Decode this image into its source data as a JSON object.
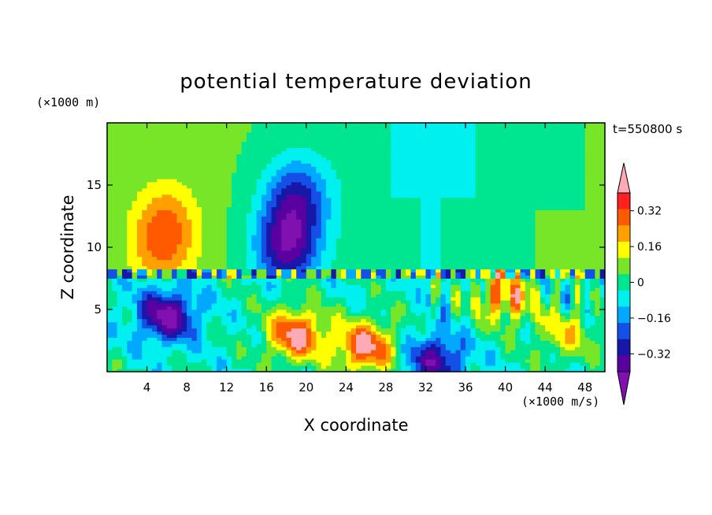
{
  "chart_data": {
    "type": "heatmap",
    "title": "potential temperature deviation",
    "xlabel": "X coordinate",
    "ylabel": "Z coordinate",
    "x_unit": "(×1000 m/s)",
    "y_unit": "(×1000 m)",
    "time_label": "t=550800 s",
    "xlim": [
      0,
      50
    ],
    "ylim": [
      0,
      20
    ],
    "xticks": [
      4,
      8,
      12,
      16,
      20,
      24,
      28,
      32,
      36,
      40,
      44,
      48
    ],
    "yticks": [
      5,
      10,
      15
    ],
    "colorbar": {
      "levels": [
        -0.4,
        -0.32,
        -0.24,
        -0.16,
        -0.08,
        0,
        0.08,
        0.16,
        0.24,
        0.32,
        0.4
      ],
      "tick_labels": [
        "0.32",
        "0.16",
        "0",
        "−0.16",
        "−0.32"
      ],
      "tick_values": [
        0.32,
        0.16,
        0,
        -0.16,
        -0.32
      ],
      "colors": [
        "#8010b0",
        "#5a00a0",
        "#1818a8",
        "#1450e6",
        "#00a8ff",
        "#00f0f0",
        "#00e690",
        "#78e628",
        "#ffff00",
        "#ffa000",
        "#ff5a00",
        "#ff2020",
        "#ffaab4"
      ],
      "extend": "both"
    },
    "features": [
      {
        "x": 6,
        "z": 12.5,
        "value": 0.24
      },
      {
        "x": 5.5,
        "z": 10,
        "value": 0.3
      },
      {
        "x": 19,
        "z": 14,
        "value": -0.24
      },
      {
        "x": 18,
        "z": 10,
        "value": -0.34
      },
      {
        "x": 6,
        "z": 4.5,
        "value": -0.42
      },
      {
        "x": 19,
        "z": 3,
        "value": 0.42
      },
      {
        "x": 26,
        "z": 2,
        "value": 0.42
      },
      {
        "x": 33,
        "z": 1,
        "value": -0.34
      },
      {
        "x": 40,
        "z": 6,
        "value": 0.32
      },
      {
        "x": 46,
        "z": 3,
        "value": 0.2
      }
    ],
    "grid": false,
    "legend": "right (colorbar)"
  }
}
